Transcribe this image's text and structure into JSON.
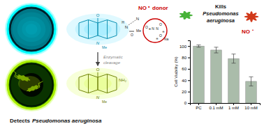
{
  "chart_data": {
    "type": "bar",
    "categories": [
      "PC",
      "0.1 mM",
      "1 mM",
      "10 mM"
    ],
    "values": [
      100,
      93,
      78,
      38
    ],
    "errors": [
      2,
      5,
      8,
      8
    ],
    "color": "#aabcaa",
    "ylabel": "Cell Viability (%)",
    "ylim": [
      0,
      110
    ],
    "yticks": [
      0,
      20,
      40,
      60,
      80,
      100
    ],
    "grid": false,
    "annotations": [
      "Enzymatic",
      "cleavage",
      "O",
      "N",
      "Me",
      "O",
      "N",
      "Me",
      "NH₂",
      "H",
      "N",
      "O",
      "N",
      "Me",
      "O",
      "⊕",
      "N",
      "N",
      "O",
      "⊖",
      "O",
      "⊖",
      "Na",
      "NO",
      "•",
      "donor",
      "Kills",
      "Pseudomonas",
      "aeruginosa",
      "NO",
      "•",
      "Detects",
      "Pseudomonas aeruginosa"
    ]
  }
}
